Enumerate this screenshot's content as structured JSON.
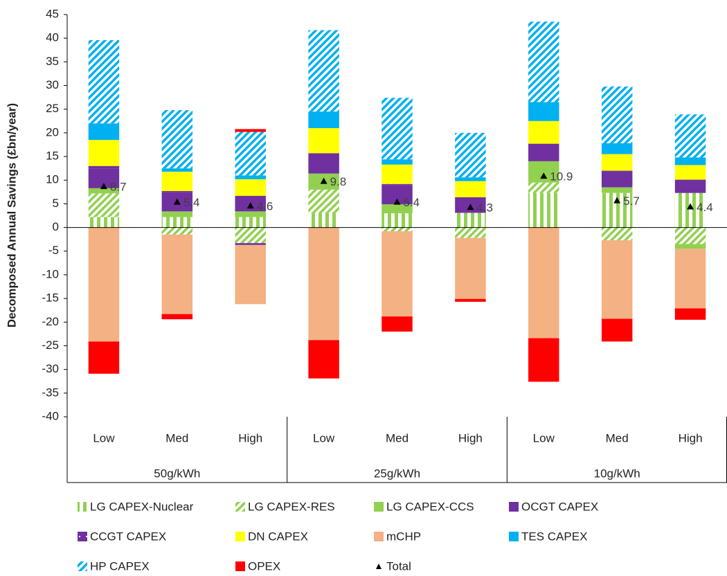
{
  "chart_data": {
    "type": "stacked-bar",
    "y_axis_label": "Decomposed Annual Savings (£bn/year)",
    "categories": [
      "Low",
      "Med",
      "High",
      "Low",
      "Med",
      "High",
      "Low",
      "Med",
      "High"
    ],
    "groups": [
      "50g/kWh",
      "25g/kWh",
      "10g/kWh"
    ],
    "ylim": [
      -40,
      45
    ],
    "yticks": [
      -40,
      -35,
      -30,
      -25,
      -20,
      -15,
      -10,
      -5,
      0,
      5,
      10,
      15,
      20,
      25,
      30,
      35,
      40,
      45
    ],
    "series": [
      {
        "name": "LG CAPEX-Nuclear",
        "color": "#92d050",
        "pattern": "vertical",
        "values": [
          2.2,
          2.2,
          2.2,
          3,
          3,
          3.1,
          7.3,
          7.3,
          7.3
        ]
      },
      {
        "name": "LG CAPEX-RES",
        "color": "#92d050",
        "pattern": "diagonal",
        "values": [
          5,
          -1.5,
          -3.3,
          5,
          -0.8,
          -2.2,
          2.2,
          -2.7,
          -3.5
        ]
      },
      {
        "name": "LG CAPEX-CCS",
        "color": "#92d050",
        "pattern": "solid",
        "values": [
          1.1,
          1.2,
          1.2,
          3.4,
          1.9,
          0,
          4.5,
          1.2,
          -1.0
        ]
      },
      {
        "name": "OCGT CAPEX",
        "color": "#7030a0",
        "pattern": "solid",
        "values": [
          4.2,
          4.1,
          3.3,
          3.9,
          4.0,
          3.3,
          3.7,
          3.3,
          2.8
        ]
      },
      {
        "name": "CCGT CAPEX",
        "color": "#7030a0",
        "pattern": "dotted",
        "values": [
          0.5,
          0.2,
          -0.4,
          0.4,
          0.3,
          0,
          0,
          0.2,
          0
        ]
      },
      {
        "name": "DN CAPEX",
        "color": "#ffff00",
        "pattern": "solid",
        "values": [
          5.5,
          4.1,
          3.5,
          5.3,
          4.1,
          3.4,
          4.8,
          3.5,
          3.1
        ]
      },
      {
        "name": "mCHP",
        "color": "#f4b183",
        "pattern": "solid",
        "values": [
          -24.1,
          -16.8,
          -12.5,
          -23.8,
          -18,
          -12.9,
          -23.4,
          -16.6,
          -12.6
        ]
      },
      {
        "name": "TES CAPEX",
        "color": "#00b0f0",
        "pattern": "solid",
        "values": [
          3.5,
          0.7,
          0.8,
          3.5,
          1.1,
          0.8,
          4,
          2.3,
          1.6
        ]
      },
      {
        "name": "HP CAPEX",
        "color": "#00b0f0",
        "pattern": "diagonal",
        "values": [
          17.6,
          12.3,
          9.2,
          17.2,
          13,
          9.4,
          17,
          12,
          9.1
        ]
      },
      {
        "name": "OPEX",
        "color": "#ff0000",
        "pattern": "solid",
        "values": [
          -6.8,
          -1.1,
          0.6,
          -8.1,
          -3.2,
          -0.6,
          -9.2,
          -4.8,
          -2.4
        ]
      }
    ],
    "total": {
      "name": "Total",
      "color": "#000000",
      "values": [
        8.7,
        5.4,
        4.6,
        9.8,
        5.4,
        4.3,
        10.9,
        5.7,
        4.4
      ]
    }
  }
}
